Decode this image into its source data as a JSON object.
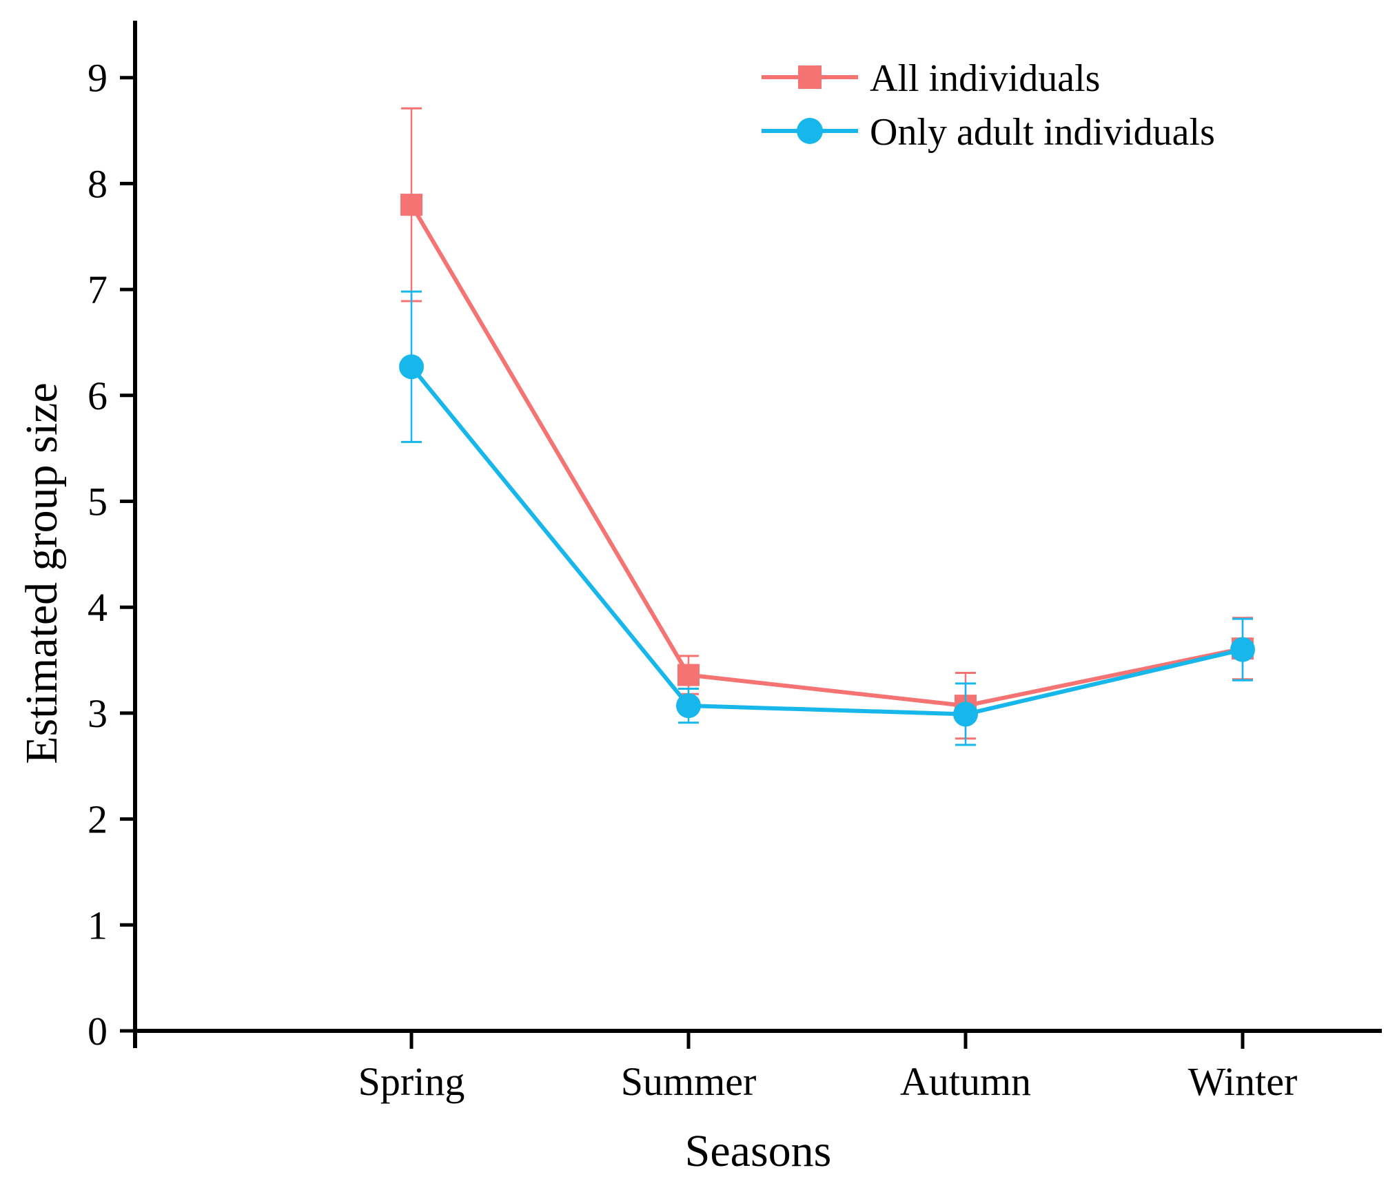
{
  "chart_data": {
    "type": "line",
    "title": "",
    "xlabel": "Seasons",
    "ylabel": "Estimated group size",
    "categories": [
      "Spring",
      "Summer",
      "Autumn",
      "Winter"
    ],
    "ylim": [
      0,
      9.5
    ],
    "yticks": [
      "0",
      "1",
      "2",
      "3",
      "4",
      "5",
      "6",
      "7",
      "8",
      "9"
    ],
    "grid": false,
    "legend_position": "top-right",
    "series": [
      {
        "name": "All individuals",
        "marker": "square",
        "color": "#f57373",
        "values": [
          7.8,
          3.36,
          3.07,
          3.61
        ],
        "error": [
          0.91,
          0.18,
          0.31,
          0.29
        ]
      },
      {
        "name": "Only adult individuals",
        "marker": "circle",
        "color": "#18b7eb",
        "values": [
          6.27,
          3.07,
          2.99,
          3.6
        ],
        "error": [
          0.71,
          0.16,
          0.29,
          0.29
        ]
      }
    ]
  }
}
